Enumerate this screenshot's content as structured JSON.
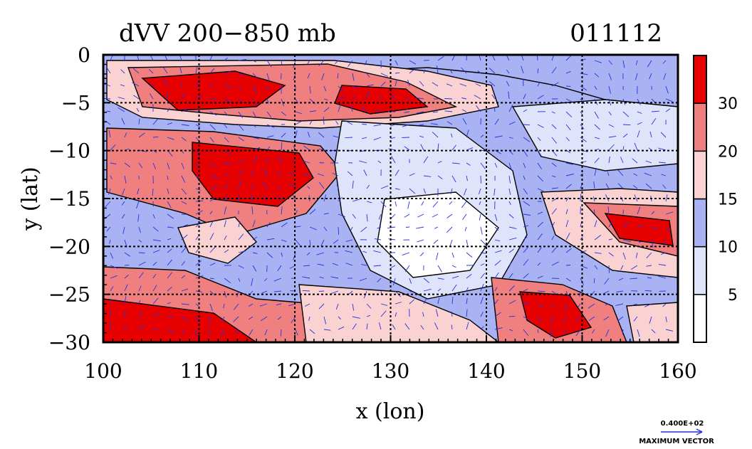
{
  "chart_data": {
    "type": "heatmap",
    "title": "dVV 200−850 mb",
    "date_label": "011112",
    "xlabel": "x (lon)",
    "ylabel": "y (lat)",
    "xlim": [
      100,
      160
    ],
    "ylim": [
      -30,
      0
    ],
    "x_ticks": [
      "100",
      "110",
      "120",
      "130",
      "140",
      "150",
      "160"
    ],
    "y_ticks": [
      "0",
      "−5",
      "−10",
      "−15",
      "−20",
      "−25",
      "−30"
    ],
    "x_tick_values": [
      100,
      110,
      120,
      130,
      140,
      150,
      160
    ],
    "y_tick_values": [
      0,
      -5,
      -10,
      -15,
      -20,
      -25,
      -30
    ],
    "grid": true,
    "colorbar": {
      "levels": [
        0,
        5,
        10,
        15,
        20,
        30,
        40
      ],
      "labels": [
        "5",
        "10",
        "15",
        "20",
        "30"
      ],
      "label_values": [
        5,
        10,
        15,
        20,
        30
      ],
      "colors": [
        "#ffffff",
        "#e0e4fb",
        "#a9b2f2",
        "#fbd2d2",
        "#f08080",
        "#e60000"
      ]
    },
    "vector_legend": {
      "value_label": "0.400E+02",
      "caption": "MAXIMUM VECTOR",
      "color": "#2233dd"
    }
  }
}
